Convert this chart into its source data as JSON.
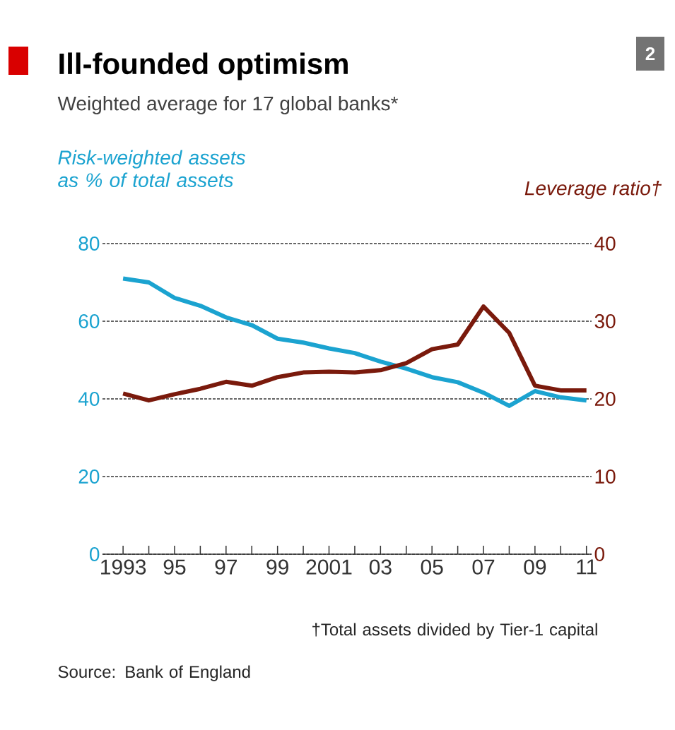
{
  "chart_data": {
    "type": "line",
    "title": "Ill-founded optimism",
    "subtitle": "Weighted average for 17 global banks*",
    "ylabel": "Risk-weighted assets as % of total assets",
    "y2label": "Leverage ratio†",
    "x": [
      1993,
      1994,
      1995,
      1996,
      1997,
      1998,
      1999,
      2000,
      2001,
      2002,
      2003,
      2004,
      2005,
      2006,
      2007,
      2008,
      2009,
      2010,
      2011
    ],
    "series": [
      {
        "color": "#1ba3d0",
        "values": [
          71,
          70,
          66,
          64,
          61,
          59,
          55.5,
          54.5,
          53,
          51.8,
          49.6,
          47.8,
          45.6,
          44.3,
          41.6,
          38.2,
          42,
          40.4,
          39.6
        ]
      },
      {
        "color": "#7a1a0c",
        "axis": "y2",
        "values": [
          20.7,
          19.8,
          20.6,
          21.3,
          22.2,
          21.7,
          22.8,
          23.4,
          23.5,
          23.4,
          23.7,
          24.6,
          26.4,
          27,
          31.9,
          28.5,
          21.7,
          21.1,
          21.1
        ]
      }
    ],
    "xlim": [
      1992.2,
      2011.2
    ],
    "xticks": [
      1993,
      {
        "value": 1994,
        "label": null
      },
      {
        "value": 1995,
        "label": "95"
      },
      {
        "value": 1996,
        "label": null
      },
      {
        "value": 1997,
        "label": "97"
      },
      {
        "value": 1998,
        "label": null
      },
      {
        "value": 1999,
        "label": "99"
      },
      {
        "value": 2000,
        "label": null
      },
      2001,
      {
        "value": 2002,
        "label": null
      },
      {
        "value": 2003,
        "label": "03"
      },
      {
        "value": 2004,
        "label": null
      },
      {
        "value": 2005,
        "label": "05"
      },
      {
        "value": 2006,
        "label": null
      },
      {
        "value": 2007,
        "label": "07"
      },
      {
        "value": 2008,
        "label": null
      },
      {
        "value": 2009,
        "label": "09"
      },
      {
        "value": 2010,
        "label": null
      },
      {
        "value": 2011,
        "label": "11"
      }
    ],
    "ylim": [
      0,
      80
    ],
    "yticks": [
      0,
      20,
      40,
      60,
      80
    ],
    "y2lim": [
      0,
      40
    ],
    "y2ticks": [
      0,
      10,
      20,
      30,
      40
    ],
    "grid": "y",
    "annotations": [
      "2",
      "†Total assets divided by Tier-1 capital",
      "Source: Bank of England"
    ]
  }
}
